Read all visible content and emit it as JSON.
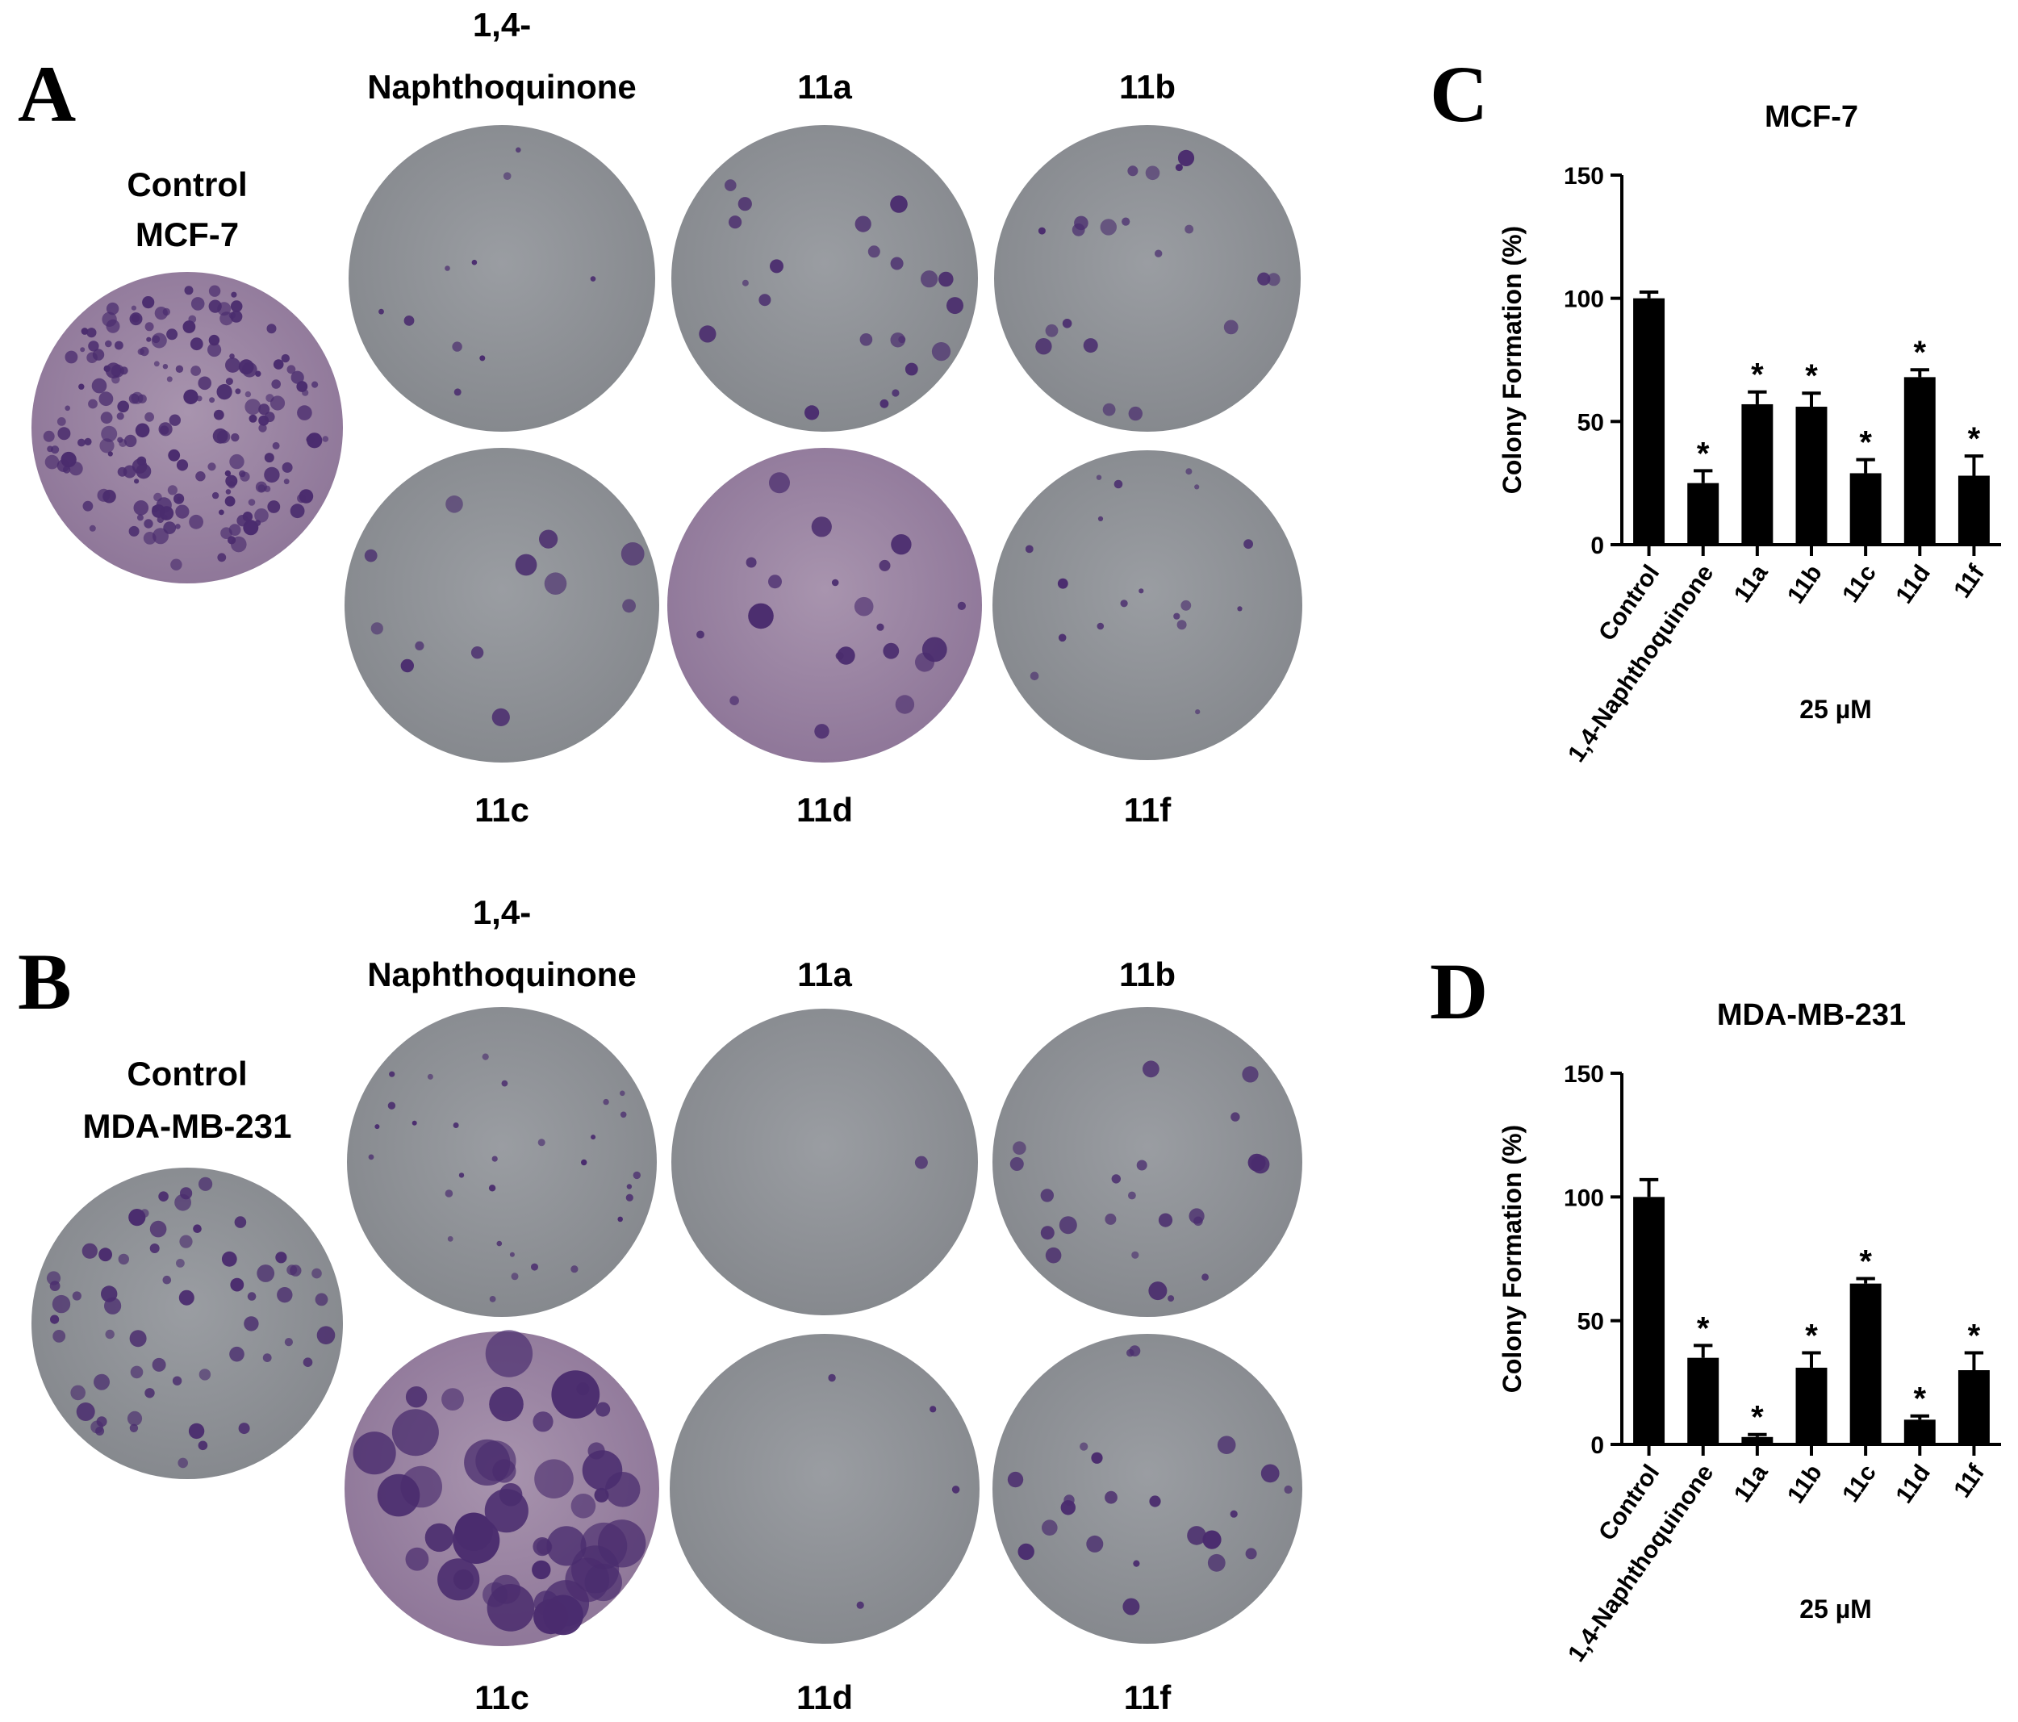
{
  "panels": {
    "A": {
      "letter": "A",
      "control_label_line1": "Control",
      "control_label_line2": "MCF-7",
      "plate_labels": {
        "naphtho_line1": "1,4-",
        "naphtho_line2": "Naphthoquinone",
        "p11a": "11a",
        "p11b": "11b",
        "p11c": "11c",
        "p11d": "11d",
        "p11f": "11f"
      }
    },
    "B": {
      "letter": "B",
      "control_label_line1": "Control",
      "control_label_line2": "MDA-MB-231",
      "plate_labels": {
        "naphtho_line1": "1,4-",
        "naphtho_line2": "Naphthoquinone",
        "p11a": "11a",
        "p11b": "11b",
        "p11c": "11c",
        "p11d": "11d",
        "p11f": "11f"
      }
    },
    "C": {
      "letter": "C"
    },
    "D": {
      "letter": "D"
    }
  },
  "colors": {
    "plate_gray": "#8e9196",
    "plate_purple": "#9d86a6",
    "colony": "#4a2c6e",
    "bar": "#000000"
  },
  "chart_data": [
    {
      "type": "bar",
      "title": "MCF-7",
      "ylabel": "Colony Formation (%)",
      "xlabel": "25 µM",
      "ylim": [
        0,
        150
      ],
      "yticks": [
        0,
        50,
        100,
        150
      ],
      "categories": [
        "Control",
        "1,4-Naphthoquinone",
        "11a",
        "11b",
        "11c",
        "11d",
        "11f"
      ],
      "values": [
        100,
        25,
        57,
        56,
        29,
        68,
        28
      ],
      "errors": [
        2.5,
        5,
        5,
        5.5,
        5.5,
        3,
        8
      ],
      "significance": [
        "",
        "*",
        "*",
        "*",
        "*",
        "*",
        "*"
      ]
    },
    {
      "type": "bar",
      "title": "MDA-MB-231",
      "ylabel": "Colony Formation (%)",
      "xlabel": "25 µM",
      "ylim": [
        0,
        150
      ],
      "yticks": [
        0,
        50,
        100,
        150
      ],
      "categories": [
        "Control",
        "1,4-Naphthoquinone",
        "11a",
        "11b",
        "11c",
        "11d",
        "11f"
      ],
      "values": [
        100,
        35,
        3,
        31,
        65,
        10,
        30
      ],
      "errors": [
        7,
        5,
        1,
        6,
        2,
        1.5,
        7
      ],
      "significance": [
        "",
        "*",
        "*",
        "*",
        "*",
        "*",
        "*"
      ]
    }
  ]
}
